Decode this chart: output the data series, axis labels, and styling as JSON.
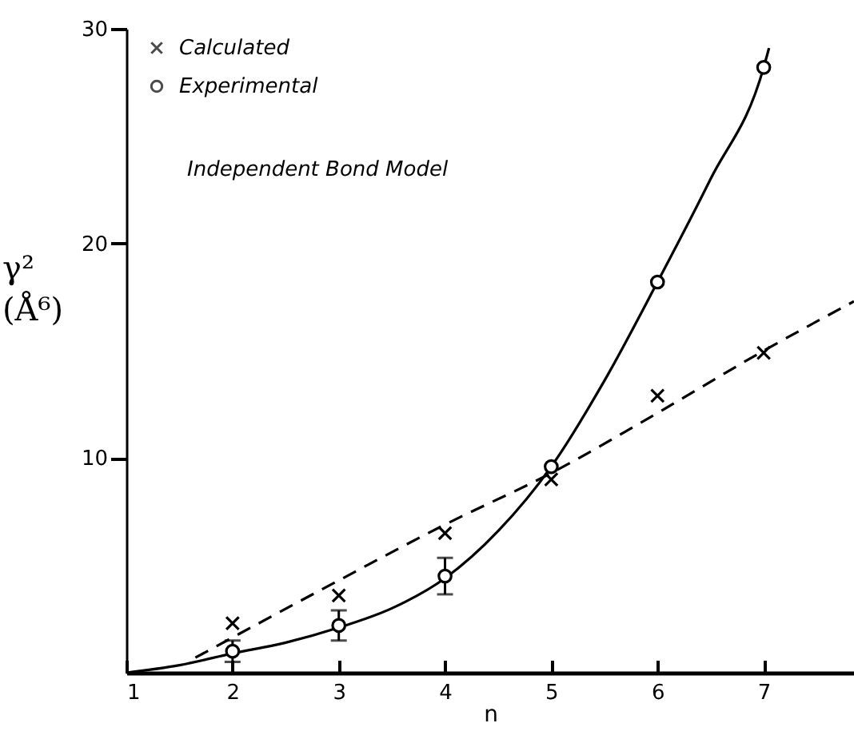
{
  "chart_data": {
    "type": "scatter",
    "xlabel": "n",
    "ylabel": "γ² (Å⁶)",
    "xlim": [
      1,
      7.85
    ],
    "xticks": [
      1,
      2,
      3,
      4,
      5,
      6,
      7
    ],
    "ylim": [
      0,
      30
    ],
    "yticks": [
      10,
      20,
      30
    ],
    "grid": false,
    "legend": "top left",
    "annotations": [
      "Independent Bond Model"
    ],
    "series": [
      {
        "name": "Calculated",
        "marker": "cross",
        "color": "#000000",
        "x": [
          2,
          3,
          4,
          5,
          6,
          7
        ],
        "values": [
          2.3,
          3.6,
          6.5,
          9.0,
          12.9,
          14.9
        ]
      },
      {
        "name": "Experimental",
        "marker": "circle",
        "color": "#000000",
        "x": [
          2,
          3,
          4,
          5,
          6,
          7
        ],
        "values": [
          1.0,
          2.2,
          4.5,
          9.6,
          18.2,
          28.2
        ],
        "errors": [
          0.5,
          0.7,
          0.85,
          null,
          null,
          null
        ]
      },
      {
        "type": "line",
        "line_style": "solid",
        "color": "#000000",
        "x": [
          1,
          1.5,
          2,
          2.5,
          3,
          3.5,
          4,
          4.5,
          5,
          5.5,
          6,
          6.5,
          7,
          7.05
        ],
        "values": [
          0,
          0.35,
          0.9,
          1.4,
          2.1,
          3.0,
          4.4,
          6.6,
          9.6,
          13.6,
          18.2,
          23.0,
          28.2,
          29.1
        ]
      },
      {
        "type": "line",
        "line_style": "dashed",
        "color": "#000000",
        "x": [
          1.65,
          3,
          4,
          5,
          6,
          7,
          7.85
        ],
        "values": [
          0.7,
          4.3,
          6.9,
          9.3,
          12.1,
          15.0,
          17.3
        ]
      }
    ]
  }
}
